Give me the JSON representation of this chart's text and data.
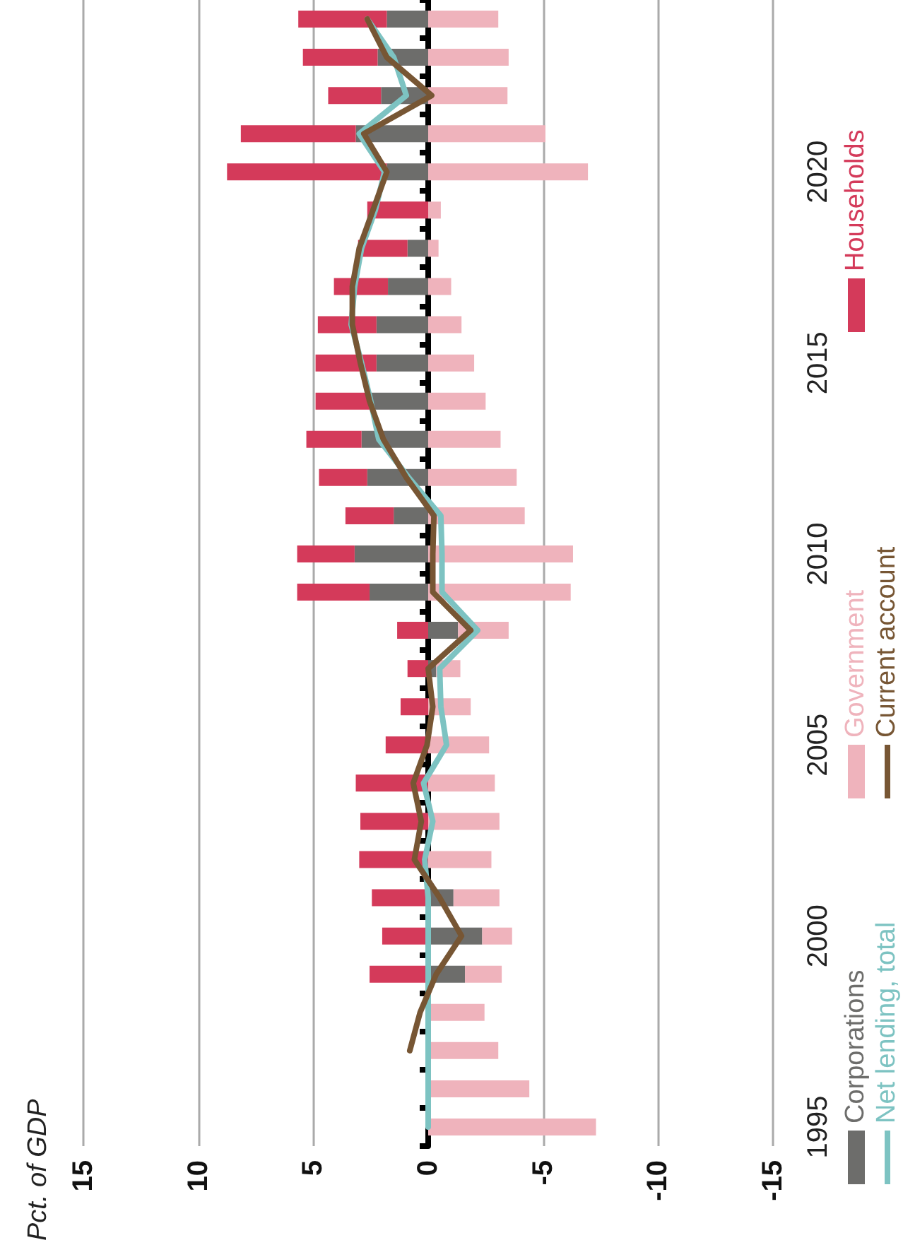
{
  "chart_data": {
    "type": "bar",
    "stacked": true,
    "orientation": "horizontal",
    "ylabel": "Pct. of GDP",
    "categories": [
      null,
      null,
      null,
      null,
      "2020",
      null,
      null,
      null,
      null,
      "2015",
      null,
      null,
      null,
      null,
      "2010",
      null,
      null,
      null,
      null,
      "2005",
      null,
      null,
      null,
      null,
      "2000",
      null,
      null,
      null,
      null,
      "1995"
    ],
    "xlim": [
      15,
      -15
    ],
    "xticks": [
      15,
      10,
      5,
      0,
      -5,
      -10,
      -15
    ],
    "grid": "x",
    "legend": "right",
    "series": [
      {
        "name": "Corporations",
        "color": "#6d6d6b",
        "values": [
          1.8,
          2.2,
          2.05,
          3.15,
          1.8,
          null,
          0.9,
          1.75,
          2.25,
          2.25,
          2.5,
          2.9,
          2.65,
          1.5,
          3.2,
          2.55,
          -1.3,
          -0.35,
          null,
          null,
          null,
          null,
          null,
          -1.1,
          -2.35,
          -1.6,
          null,
          null,
          null,
          null
        ]
      },
      {
        "name": "Government",
        "color": "#efb3bc",
        "values": [
          -3.05,
          -3.5,
          -3.45,
          -5.1,
          -6.95,
          -0.55,
          -0.45,
          -1.0,
          -1.45,
          -2.0,
          -2.5,
          -3.15,
          -3.85,
          -4.2,
          -6.3,
          -6.2,
          -2.2,
          -1.05,
          -1.85,
          -2.65,
          -2.9,
          -3.1,
          -2.75,
          -2.0,
          -1.3,
          -1.6,
          -2.45,
          -3.05,
          -4.4,
          -7.3
        ]
      },
      {
        "name": "Households",
        "color": "#d43a5a",
        "values": [
          3.85,
          3.25,
          2.3,
          5.0,
          6.95,
          2.65,
          2.15,
          2.35,
          2.55,
          2.65,
          2.4,
          2.4,
          2.1,
          2.1,
          2.5,
          3.15,
          1.35,
          0.9,
          1.2,
          1.85,
          3.15,
          2.95,
          3.0,
          2.45,
          2.0,
          2.55,
          null,
          null,
          null,
          null
        ]
      },
      {
        "name": "Net lending, total",
        "type": "line",
        "color": "#7dc3c2",
        "values": [
          2.65,
          1.5,
          0.95,
          3.0,
          1.9,
          2.3,
          2.9,
          3.2,
          3.35,
          2.9,
          2.5,
          2.15,
          0.85,
          -0.55,
          -0.6,
          -0.6,
          -2.15,
          -0.5,
          -0.55,
          -0.8,
          0.2,
          -0.2,
          0.15,
          0,
          0,
          0,
          0,
          0,
          0,
          0
        ]
      },
      {
        "name": "Current account",
        "type": "line",
        "color": "#775634",
        "values": [
          2.65,
          1.8,
          -0.15,
          2.8,
          1.8,
          2.4,
          3.0,
          3.3,
          3.3,
          2.95,
          2.55,
          1.95,
          0.95,
          -0.25,
          -0.2,
          -0.2,
          -1.85,
          0,
          -0.2,
          0.05,
          0.65,
          0.3,
          0.6,
          -0.5,
          -1.45,
          -0.35,
          0.35,
          0.8,
          null,
          null
        ]
      }
    ]
  }
}
